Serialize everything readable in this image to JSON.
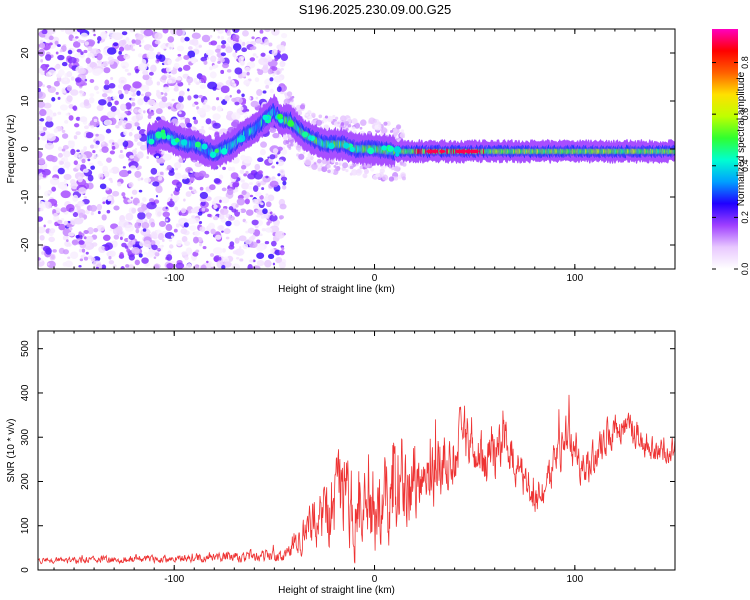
{
  "title": "S196.2025.230.09.00.G25",
  "chart_data": [
    {
      "type": "heatmap",
      "name": "spectrogram",
      "xlabel": "Height of straight line (km)",
      "ylabel": "Frequency (Hz)",
      "xlim": [
        -168,
        150
      ],
      "ylim": [
        -25,
        25
      ],
      "xticks": [
        -100,
        0,
        100
      ],
      "yticks": [
        -20,
        -10,
        0,
        10,
        20
      ],
      "colorbar": {
        "label": "Normalized spectral amplitude",
        "range": [
          0.0,
          0.93
        ],
        "ticks": [
          0.0,
          0.2,
          0.4,
          0.6,
          0.8
        ],
        "colormap": [
          "#ffffff",
          "#e8c8ff",
          "#a040ff",
          "#2000ff",
          "#00a0ff",
          "#00ffd0",
          "#30ff30",
          "#c0ff00",
          "#ffe000",
          "#ff6000",
          "#ff0000",
          "#ff00c0"
        ]
      },
      "ridge": {
        "x": [
          -113,
          -105,
          -100,
          -95,
          -90,
          -85,
          -80,
          -75,
          -70,
          -65,
          -60,
          -55,
          -50,
          -47,
          -45,
          -42,
          -40,
          -35,
          -30,
          -25,
          -20,
          -15,
          -10,
          -5,
          0,
          10,
          20,
          30,
          40,
          50,
          60,
          80,
          100,
          120,
          150
        ],
        "y": [
          2,
          3,
          2,
          1,
          1,
          0,
          -1,
          0,
          1,
          3,
          4,
          6,
          8,
          6,
          6,
          6,
          5,
          3,
          2,
          1,
          1,
          1,
          0,
          0,
          0,
          -0.5,
          -0.5,
          -0.5,
          -0.5,
          -0.5,
          -0.5,
          -0.5,
          -0.5,
          -0.5,
          -0.5
        ]
      }
    },
    {
      "type": "line",
      "name": "snr",
      "xlabel": "Height of straight line (km)",
      "ylabel": "SNR (10 * v/v)",
      "xlim": [
        -168,
        150
      ],
      "ylim": [
        0,
        540
      ],
      "xticks": [
        -100,
        0,
        100
      ],
      "yticks": [
        0,
        100,
        200,
        300,
        400,
        500
      ],
      "color": "#ee3333",
      "envelope": {
        "x": [
          -168,
          -150,
          -120,
          -100,
          -80,
          -60,
          -45,
          -38,
          -35,
          -30,
          -25,
          -20,
          -15,
          -10,
          -5,
          0,
          5,
          10,
          15,
          20,
          25,
          30,
          35,
          40,
          45,
          50,
          55,
          60,
          65,
          70,
          75,
          80,
          85,
          90,
          95,
          100,
          105,
          110,
          115,
          120,
          125,
          130,
          135,
          140,
          145,
          150
        ],
        "mean": [
          22,
          22,
          24,
          26,
          28,
          30,
          32,
          60,
          80,
          110,
          130,
          150,
          150,
          140,
          140,
          145,
          150,
          150,
          165,
          190,
          200,
          230,
          250,
          270,
          300,
          280,
          260,
          240,
          300,
          260,
          200,
          160,
          180,
          260,
          300,
          280,
          220,
          260,
          300,
          310,
          320,
          300,
          280,
          270,
          260,
          280
        ],
        "amp": [
          10,
          10,
          12,
          12,
          15,
          18,
          20,
          40,
          60,
          80,
          100,
          130,
          150,
          150,
          150,
          150,
          150,
          150,
          140,
          130,
          120,
          110,
          110,
          100,
          100,
          90,
          90,
          90,
          80,
          80,
          70,
          60,
          60,
          80,
          80,
          70,
          60,
          60,
          60,
          50,
          50,
          50,
          45,
          45,
          40,
          40
        ]
      }
    }
  ]
}
